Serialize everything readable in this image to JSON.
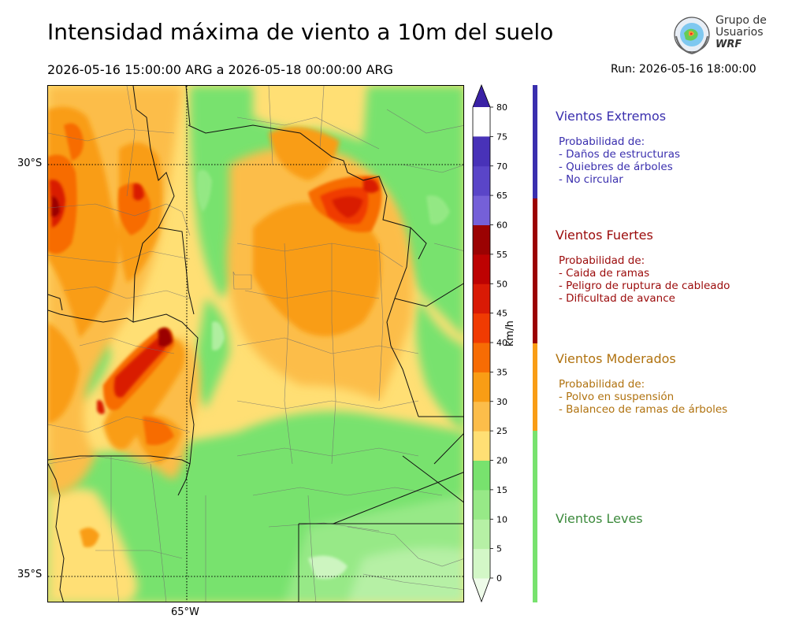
{
  "header": {
    "title": "Intensidad máxima de viento a 10m del suelo",
    "period": "2026-05-16 15:00:00 ARG  a  2026-05-18 00:00:00 ARG",
    "run": "Run: 2026-05-16 18:00:00"
  },
  "logo": {
    "line1": "Grupo de",
    "line2": "Usuarios",
    "line3": "WRF"
  },
  "map": {
    "lat_labels": [
      "30°S",
      "35°S"
    ],
    "lon_labels": [
      "65°W"
    ]
  },
  "colorbar": {
    "unit": "km/h",
    "ticks": [
      "0",
      "5",
      "10",
      "15",
      "20",
      "25",
      "30",
      "35",
      "40",
      "45",
      "50",
      "55",
      "60",
      "65",
      "70",
      "75",
      "80"
    ],
    "colors": [
      "#eefbe9",
      "#d3f7c7",
      "#b6f0a5",
      "#97e987",
      "#78e26e",
      "#ffdf74",
      "#fcbd4a",
      "#f99d15",
      "#f76c04",
      "#f03b02",
      "#d91a05",
      "#bd0202",
      "#9b0202",
      "#7560d8",
      "#5a45c8",
      "#4832b8",
      "#3a22a5"
    ]
  },
  "categories": [
    {
      "title": "Vientos Extremos",
      "color": "#3a2fae",
      "prob": "Probabilidad de:",
      "items": [
        "- Daños de estructuras",
        "- Quiebres de árboles",
        "- No circular"
      ]
    },
    {
      "title": "Vientos Fuertes",
      "color": "#9b0a0a",
      "prob": "Probabilidad de:",
      "items": [
        "- Caida de ramas",
        "- Peligro de ruptura de cableado",
        "- Dificultad de avance"
      ]
    },
    {
      "title": "Vientos Moderados",
      "color": "#b0720f",
      "prob": "Probabilidad de:",
      "items": [
        "- Polvo en suspensión",
        "- Balanceo de ramas de árboles"
      ]
    },
    {
      "title": "Vientos Leves",
      "color": "#3c8a3c"
    }
  ]
}
